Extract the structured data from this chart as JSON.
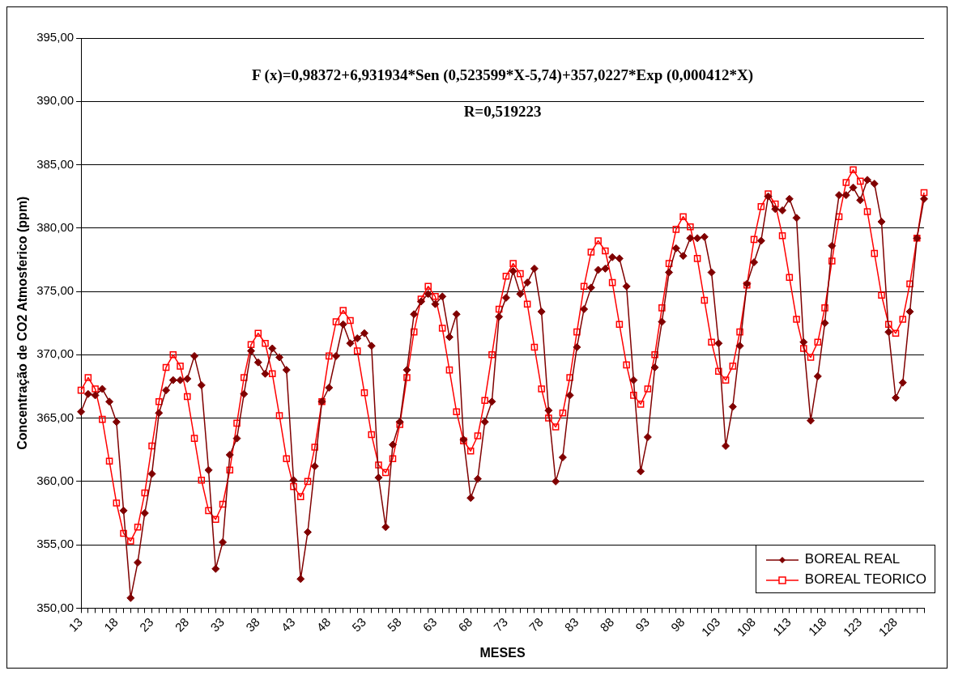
{
  "chart_data": {
    "type": "line",
    "categories": [
      "13",
      null,
      null,
      null,
      null,
      "18",
      null,
      null,
      null,
      null,
      "23",
      null,
      null,
      null,
      null,
      "28",
      null,
      null,
      null,
      null,
      "33",
      null,
      null,
      null,
      null,
      "38",
      null,
      null,
      null,
      null,
      "43",
      null,
      null,
      null,
      null,
      "48",
      null,
      null,
      null,
      null,
      "53",
      null,
      null,
      null,
      null,
      "58",
      null,
      null,
      null,
      null,
      "63",
      null,
      null,
      null,
      null,
      "68",
      null,
      null,
      null,
      null,
      "73",
      null,
      null,
      null,
      null,
      "78",
      null,
      null,
      null,
      null,
      "83",
      null,
      null,
      null,
      null,
      "88",
      null,
      null,
      null,
      null,
      "93",
      null,
      null,
      null,
      null,
      "98",
      null,
      null,
      null,
      null,
      "103",
      null,
      null,
      null,
      null,
      "108",
      null,
      null,
      null,
      null,
      "113",
      null,
      null,
      null,
      null,
      "118",
      null,
      null,
      null,
      null,
      "123",
      null,
      null,
      null,
      null,
      "128",
      null,
      null,
      null,
      null
    ],
    "series": [
      {
        "name": "BOREAL REAL",
        "color": "#800000",
        "marker": "diamond",
        "values": [
          365.5,
          366.9,
          366.8,
          367.3,
          366.3,
          364.7,
          357.7,
          350.8,
          353.6,
          357.5,
          360.6,
          365.4,
          367.2,
          368.0,
          368.0,
          368.1,
          369.9,
          367.6,
          360.9,
          353.1,
          355.2,
          362.1,
          363.4,
          366.9,
          370.3,
          369.4,
          368.5,
          370.5,
          369.8,
          368.8,
          360.1,
          352.3,
          356.0,
          361.2,
          366.3,
          367.4,
          369.9,
          372.4,
          370.9,
          371.3,
          371.7,
          370.7,
          360.3,
          356.4,
          362.9,
          364.7,
          368.8,
          373.2,
          374.2,
          374.8,
          374.0,
          374.6,
          371.4,
          373.2,
          363.3,
          358.7,
          360.2,
          364.7,
          366.3,
          373.0,
          374.5,
          376.6,
          374.8,
          375.7,
          376.8,
          373.4,
          365.6,
          360.0,
          361.9,
          366.8,
          370.6,
          373.6,
          375.3,
          376.7,
          376.8,
          377.7,
          377.6,
          375.4,
          368.0,
          360.8,
          363.5,
          369.0,
          372.6,
          376.5,
          378.4,
          377.8,
          379.2,
          379.2,
          379.3,
          376.5,
          370.9,
          362.8,
          365.9,
          370.7,
          375.6,
          377.3,
          379.0,
          382.5,
          381.5,
          381.4,
          382.3,
          380.8,
          371.0,
          364.8,
          368.3,
          372.5,
          378.6,
          382.6,
          382.6,
          383.2,
          382.2,
          383.8,
          383.5,
          380.5,
          371.8,
          366.6,
          367.8,
          373.4,
          379.2,
          382.3
        ]
      },
      {
        "name": "BOREAL TEORICO",
        "color": "#ff0000",
        "marker": "square",
        "values": [
          367.2,
          368.2,
          367.3,
          364.9,
          361.6,
          358.3,
          355.9,
          355.3,
          356.4,
          359.1,
          362.8,
          366.3,
          369.0,
          370.0,
          369.1,
          366.7,
          363.4,
          360.1,
          357.7,
          357.0,
          358.2,
          360.9,
          364.6,
          368.2,
          370.8,
          371.7,
          370.9,
          368.5,
          365.2,
          361.8,
          359.6,
          358.8,
          360.0,
          362.7,
          366.3,
          369.9,
          372.6,
          373.5,
          372.7,
          370.3,
          367.0,
          363.7,
          361.3,
          360.7,
          361.8,
          364.5,
          368.2,
          371.8,
          374.4,
          375.4,
          374.6,
          372.1,
          368.8,
          365.5,
          363.2,
          362.4,
          363.6,
          366.4,
          370.0,
          373.6,
          376.2,
          377.2,
          376.4,
          374.0,
          370.6,
          367.3,
          365.0,
          364.3,
          365.4,
          368.2,
          371.8,
          375.4,
          378.1,
          379.0,
          378.2,
          375.7,
          372.4,
          369.2,
          366.8,
          366.1,
          367.3,
          370.0,
          373.7,
          377.2,
          379.9,
          380.9,
          380.1,
          377.6,
          374.3,
          371.0,
          368.7,
          368.0,
          369.1,
          371.8,
          375.5,
          379.1,
          381.7,
          382.7,
          381.9,
          379.4,
          376.1,
          372.8,
          370.5,
          369.8,
          371.0,
          373.7,
          377.4,
          380.9,
          383.6,
          384.6,
          383.7,
          381.3,
          378.0,
          374.7,
          372.4,
          371.7,
          372.8,
          375.6,
          379.2,
          382.8
        ]
      }
    ],
    "xlabel": "MESES",
    "ylabel": "Concentração de CO2 Atmosferico (ppm)",
    "annotations": [
      "F (x)=0,98372+6,931934*Sen (0,523599*X-5,74)+357,0227*Exp (0,000412*X)",
      "R=0,519223"
    ],
    "ylim": [
      350,
      395
    ],
    "yticks": [
      {
        "value": 350,
        "label": "350,00"
      },
      {
        "value": 355,
        "label": "355,00"
      },
      {
        "value": 360,
        "label": "360,00"
      },
      {
        "value": 365,
        "label": "365,00"
      },
      {
        "value": 370,
        "label": "370,00"
      },
      {
        "value": 375,
        "label": "375,00"
      },
      {
        "value": 380,
        "label": "380,00"
      },
      {
        "value": 385,
        "label": "385,00"
      },
      {
        "value": 390,
        "label": "390,00"
      },
      {
        "value": 395,
        "label": "395,00"
      }
    ],
    "grid": "y",
    "legend": "bottom right",
    "line_style": "solid"
  }
}
